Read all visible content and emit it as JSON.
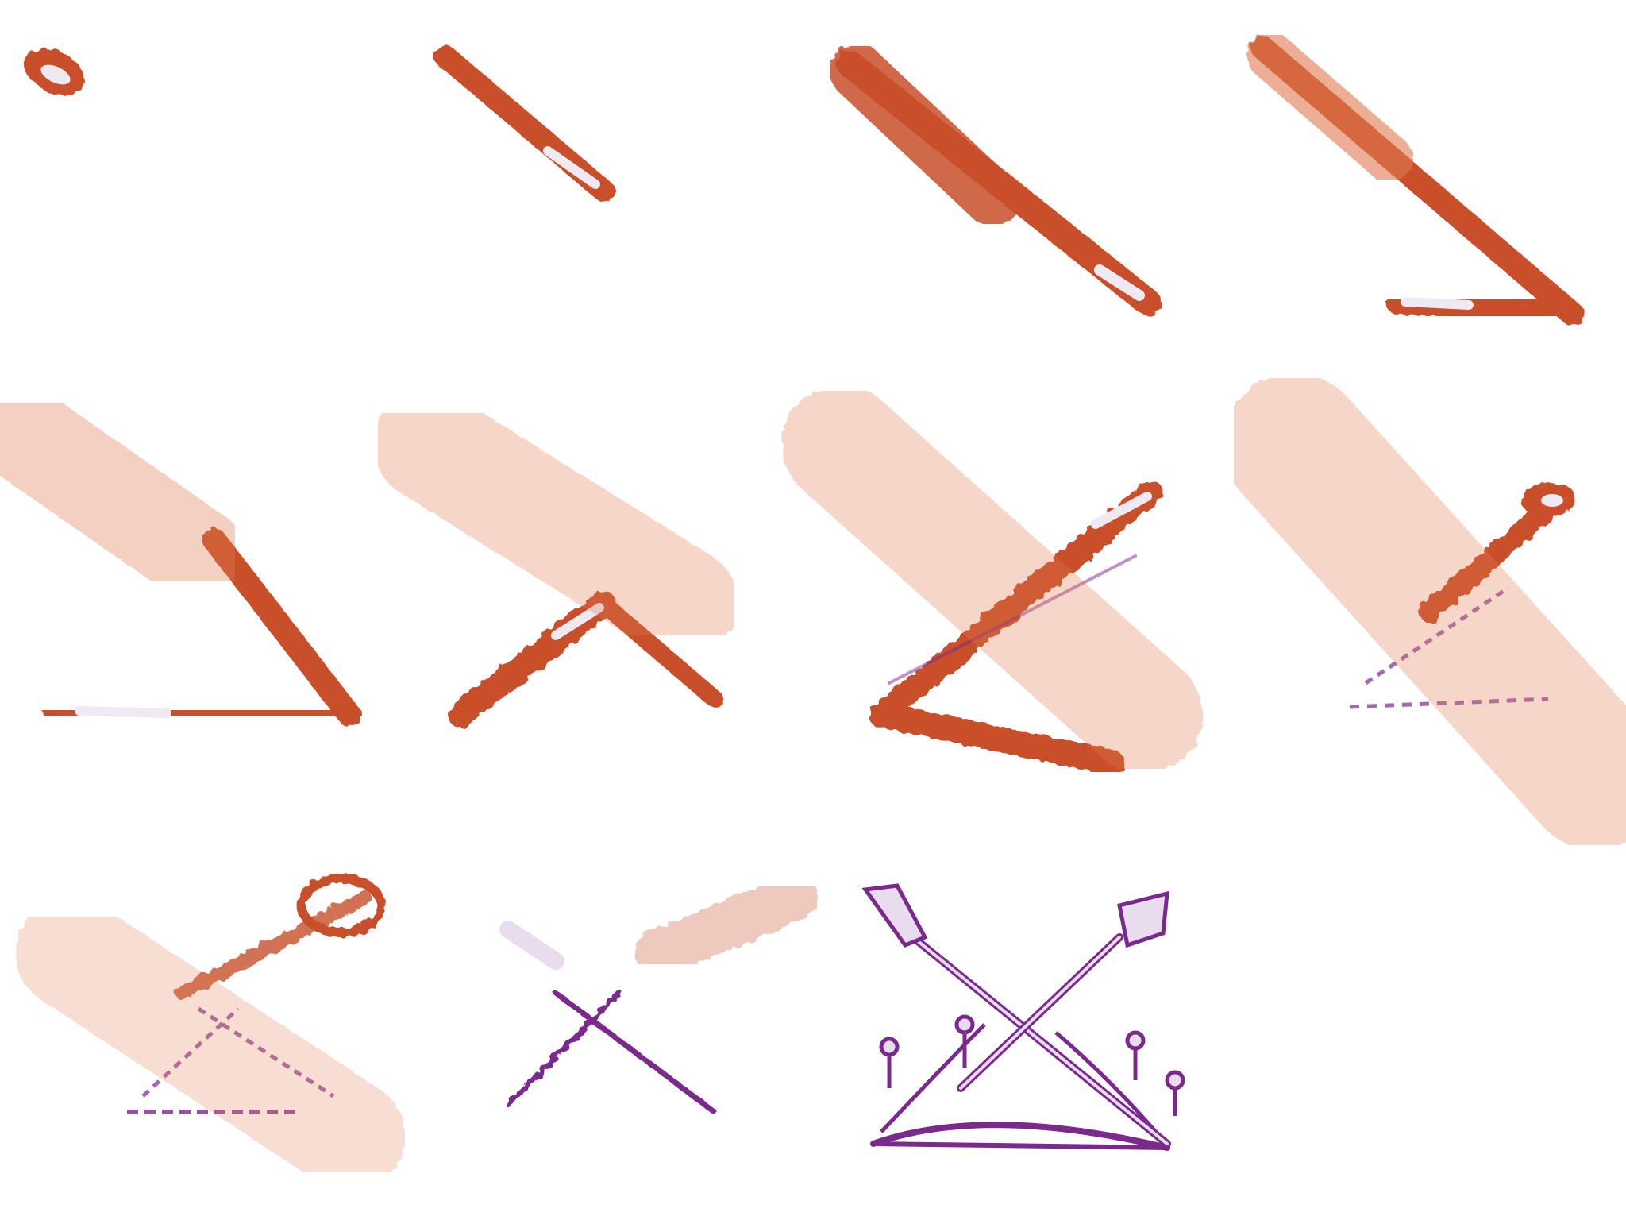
{
  "frames": [
    {
      "index": 1,
      "stage": "orange-dab"
    },
    {
      "index": 2,
      "stage": "orange-short-stroke"
    },
    {
      "index": 3,
      "stage": "orange-long-stroke"
    },
    {
      "index": 4,
      "stage": "orange-chevron-start"
    },
    {
      "index": 5,
      "stage": "orange-chevron"
    },
    {
      "index": 6,
      "stage": "orange-chevron-reversed"
    },
    {
      "index": 7,
      "stage": "orange-angle-up"
    },
    {
      "index": 8,
      "stage": "orange-purple-mix"
    },
    {
      "index": 9,
      "stage": "purple-emerging"
    },
    {
      "index": 10,
      "stage": "purple-dominant"
    },
    {
      "index": 11,
      "stage": "purple-crossed-oars-crown"
    }
  ],
  "colors": {
    "orange": "#c8502a",
    "orange_light": "#e07a50",
    "highlight": "#efe9f2",
    "purple": "#7a2a8c",
    "purple_light": "#e8dcee",
    "background": "#ffffff"
  }
}
